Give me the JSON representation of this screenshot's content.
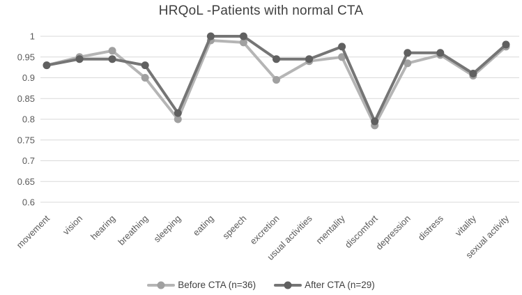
{
  "title": "HRQoL -Patients with normal CTA",
  "colors": {
    "background": "#ffffff",
    "gridline": "#d9d9d9",
    "axis_text": "#595959",
    "title_text": "#3f3f3f",
    "legend_text": "#404040"
  },
  "chart_data": {
    "type": "line",
    "title": "HRQoL -Patients with normal CTA",
    "xlabel": "",
    "ylabel": "",
    "ylim": [
      0.6,
      1.0
    ],
    "ytick_step": 0.05,
    "ytick_labels": [
      "1",
      "0.95",
      "0.9",
      "0.85",
      "0.8",
      "0.75",
      "0.7",
      "0.65",
      "0.6"
    ],
    "grid": true,
    "legend_position": "bottom",
    "categories": [
      "movement",
      "vision",
      "hearing",
      "breathing",
      "sleeping",
      "eating",
      "speech",
      "excretion",
      "usual activities",
      "mentality",
      "discomfort",
      "depression",
      "distress",
      "vitality",
      "sexual activity"
    ],
    "series": [
      {
        "name": "Before CTA (n=36)",
        "line_color": "#b5b5b5",
        "marker_color": "#a0a0a0",
        "values": [
          0.93,
          0.95,
          0.965,
          0.9,
          0.8,
          0.99,
          0.985,
          0.895,
          0.94,
          0.95,
          0.785,
          0.935,
          0.955,
          0.905,
          0.975
        ]
      },
      {
        "name": "After CTA (n=29)",
        "line_color": "#757575",
        "marker_color": "#606060",
        "values": [
          0.93,
          0.945,
          0.945,
          0.93,
          0.815,
          1.0,
          1.0,
          0.945,
          0.945,
          0.975,
          0.795,
          0.96,
          0.96,
          0.91,
          0.98
        ]
      }
    ]
  }
}
